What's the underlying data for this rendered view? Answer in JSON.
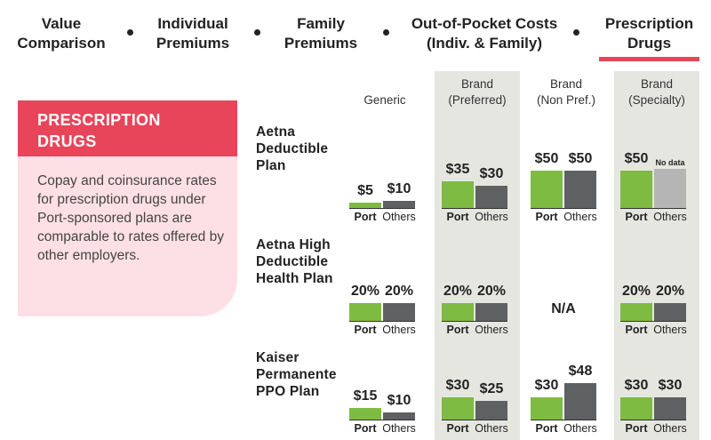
{
  "nav": {
    "items": [
      {
        "line1": "Value",
        "line2": "Comparison"
      },
      {
        "line1": "Individual",
        "line2": "Premiums"
      },
      {
        "line1": "Family",
        "line2": "Premiums"
      },
      {
        "line1": "Out-of-Pocket Costs",
        "line2": "(Indiv. & Family)"
      },
      {
        "line1": "Prescription",
        "line2": "Drugs"
      }
    ],
    "active_index": 4
  },
  "card": {
    "title_line1": "PRESCRIPTION",
    "title_line2": "DRUGS",
    "body": "Copay and coinsurance rates for prescription drugs under Port-sponsored plans are comparable to rates offered by other employers."
  },
  "columns": [
    {
      "line1": "Generic",
      "line2": ""
    },
    {
      "line1": "Brand",
      "line2": "(Preferred)"
    },
    {
      "line1": "Brand",
      "line2": "(Non Pref.)"
    },
    {
      "line1": "Brand",
      "line2": "(Specialty)"
    }
  ],
  "plans": [
    {
      "line1": "Aetna",
      "line2": "Deductible",
      "line3": "Plan"
    },
    {
      "line1": "Aetna High",
      "line2": "Deductible",
      "line3": "Health Plan"
    },
    {
      "line1": "Kaiser",
      "line2": "Permanente",
      "line3": "PPO Plan"
    }
  ],
  "series_labels": {
    "port": "Port",
    "others": "Others"
  },
  "colors": {
    "port": "#7dbb42",
    "others": "#5f6062",
    "nodata": "#b5b5b5",
    "accent": "#e8455a",
    "column_bg": "#e6e6e1",
    "card_bg": "#fde0e5"
  },
  "chart_data": {
    "type": "bar",
    "title": "Prescription Drugs",
    "categories": [
      "Generic",
      "Brand (Preferred)",
      "Brand (Non Pref.)",
      "Brand (Specialty)"
    ],
    "groups": [
      {
        "plan": "Aetna Deductible Plan",
        "unit": "$",
        "cells": [
          {
            "port": 5,
            "others": 10,
            "port_label": "$5",
            "others_label": "$10"
          },
          {
            "port": 35,
            "others": 30,
            "port_label": "$35",
            "others_label": "$30"
          },
          {
            "port": 50,
            "others": 50,
            "port_label": "$50",
            "others_label": "$50"
          },
          {
            "port": 50,
            "others": null,
            "port_label": "$50",
            "others_label": "No data"
          }
        ]
      },
      {
        "plan": "Aetna High Deductible Health Plan",
        "unit": "%",
        "cells": [
          {
            "port": 20,
            "others": 20,
            "port_label": "20%",
            "others_label": "20%"
          },
          {
            "port": 20,
            "others": 20,
            "port_label": "20%",
            "others_label": "20%"
          },
          {
            "na": true,
            "na_label": "N/A"
          },
          {
            "port": 20,
            "others": 20,
            "port_label": "20%",
            "others_label": "20%"
          }
        ]
      },
      {
        "plan": "Kaiser Permanente PPO Plan",
        "unit": "$",
        "cells": [
          {
            "port": 15,
            "others": 10,
            "port_label": "$15",
            "others_label": "$10"
          },
          {
            "port": 30,
            "others": 25,
            "port_label": "$30",
            "others_label": "$25"
          },
          {
            "port": 30,
            "others": 48,
            "port_label": "$30",
            "others_label": "$48"
          },
          {
            "port": 30,
            "others": 30,
            "port_label": "$30",
            "others_label": "$30"
          }
        ]
      }
    ]
  }
}
